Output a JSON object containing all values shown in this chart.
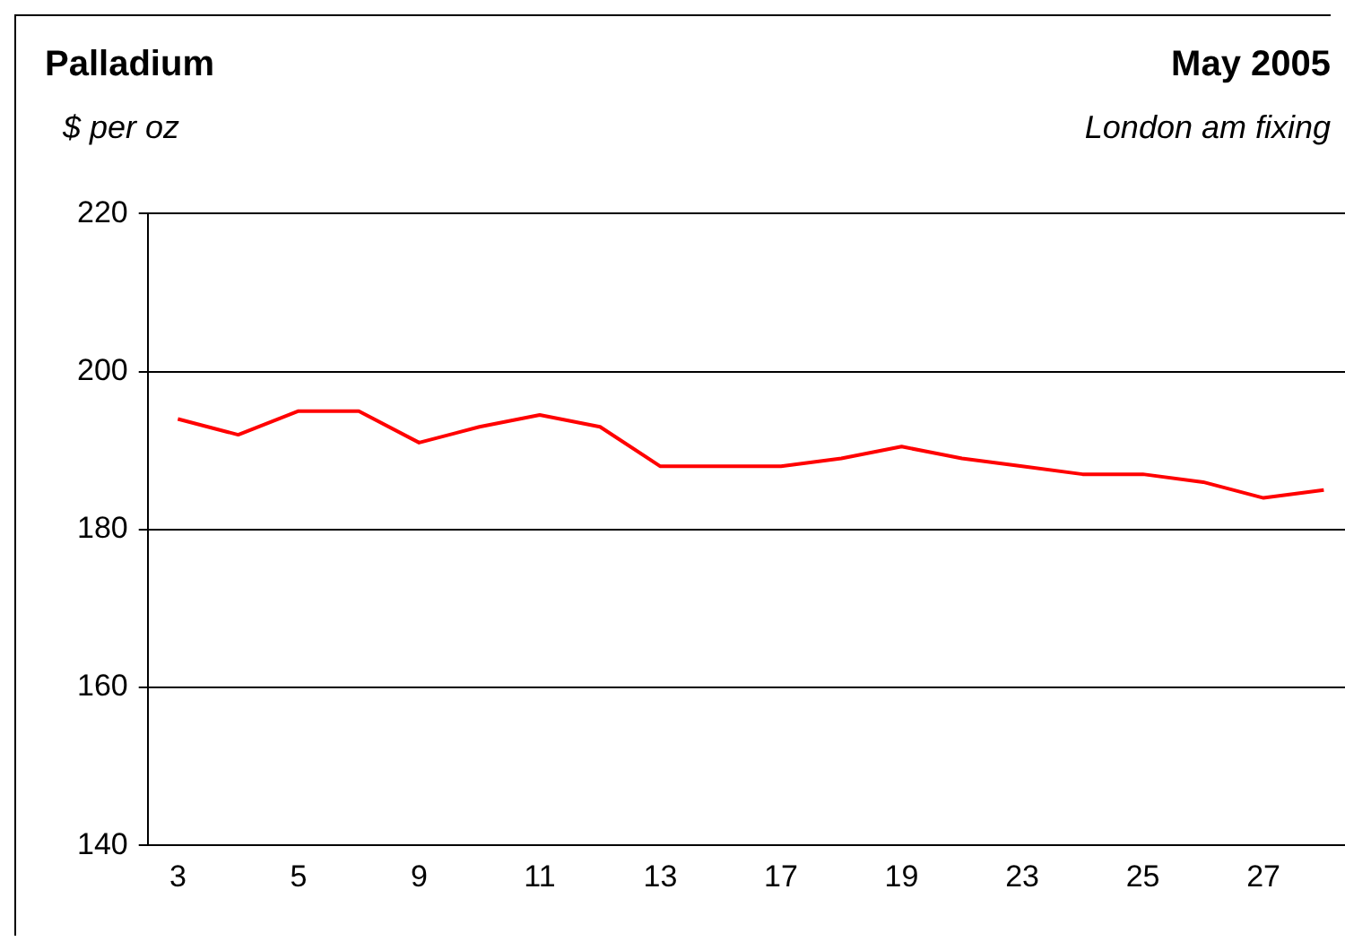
{
  "chart_data": {
    "type": "line",
    "title": "Palladium",
    "subtitle": "May 2005",
    "ylabel": "$ per oz",
    "annotations": [
      "London am fixing"
    ],
    "categories": [
      "3",
      null,
      "5",
      null,
      "9",
      null,
      "11",
      null,
      "13",
      null,
      "17",
      null,
      "19",
      null,
      "23",
      null,
      "25",
      null,
      "27",
      null
    ],
    "series": [
      {
        "color": "#ff0000",
        "values": [
          194,
          192,
          195,
          195,
          191,
          193,
          194.5,
          193,
          188,
          188,
          188,
          189,
          190.5,
          189,
          188,
          187,
          187,
          186,
          184,
          185
        ]
      }
    ],
    "ylim": [
      140,
      220
    ],
    "yticks": [
      140,
      160,
      180,
      200,
      220
    ],
    "grid": "y",
    "legend": false,
    "marker": "none",
    "line_style": "solid"
  }
}
